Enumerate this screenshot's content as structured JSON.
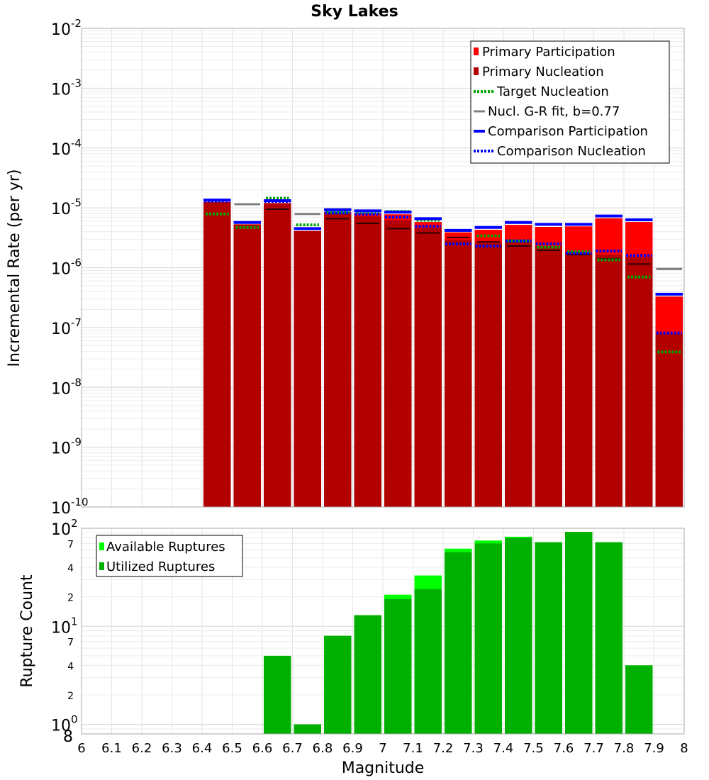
{
  "chart_data": [
    {
      "type": "bar",
      "title": "Sky Lakes",
      "ylabel": "Incremental Rate (per yr)",
      "yscale": "log",
      "ylim": [
        1e-10,
        0.01
      ],
      "xlim": [
        6.0,
        8.0
      ],
      "bin_width": 0.1,
      "grid": true,
      "legend_position": "top-right",
      "legend": [
        "Primary Participation",
        "Primary Nucleation",
        "Target Nucleation",
        "Nucl. G-R fit, b=0.77",
        "Comparison Participation",
        "Comparison Nucleation"
      ],
      "x": [
        6.45,
        6.55,
        6.65,
        6.75,
        6.85,
        6.95,
        7.05,
        7.15,
        7.25,
        7.35,
        7.45,
        7.55,
        7.65,
        7.75,
        7.85,
        7.95
      ],
      "series": [
        {
          "name": "Primary Participation",
          "color": "#ff0000",
          "style": "bar",
          "values": [
            1.25e-05,
            5.3e-06,
            1.2e-05,
            4.1e-06,
            8.5e-06,
            8.2e-06,
            7.8e-06,
            5.8e-06,
            3.9e-06,
            4.3e-06,
            5.2e-06,
            4.8e-06,
            4.9e-06,
            6.7e-06,
            5.8e-06,
            3.3e-07
          ]
        },
        {
          "name": "Primary Nucleation",
          "color": "#b20000",
          "style": "bar",
          "values": [
            1.25e-05,
            5.3e-06,
            1.2e-05,
            4.1e-06,
            8e-06,
            7.2e-06,
            6.2e-06,
            4.6e-06,
            2.9e-06,
            2.6e-06,
            2.7e-06,
            2.3e-06,
            1.75e-06,
            1.65e-06,
            1.5e-06,
            7.8e-08
          ]
        },
        {
          "name": "Target Nucleation",
          "color": "#00aa00",
          "style": "dotted",
          "values": [
            7.9e-06,
            4.7e-06,
            1.45e-05,
            5.2e-06,
            8.5e-06,
            8.4e-06,
            8.7e-06,
            6.2e-06,
            4.2e-06,
            3.4e-06,
            2.8e-06,
            2.2e-06,
            1.85e-06,
            1.35e-06,
            7e-07,
            3.9e-08
          ]
        },
        {
          "name": "Nucl. G-R fit, b=0.77",
          "color": "#808080",
          "style": "line",
          "values": [
            null,
            1.15e-05,
            null,
            7.9e-06,
            null,
            null,
            null,
            null,
            null,
            null,
            null,
            null,
            null,
            null,
            null,
            9.5e-07
          ]
        },
        {
          "name": "Comparison Participation",
          "color": "#0000ff",
          "style": "line",
          "values": [
            1.35e-05,
            5.7e-06,
            1.32e-05,
            4.5e-06,
            9.3e-06,
            8.9e-06,
            8.5e-06,
            6.6e-06,
            4.2e-06,
            4.7e-06,
            5.7e-06,
            5.3e-06,
            5.3e-06,
            7.3e-06,
            6.3e-06,
            3.6e-07
          ]
        },
        {
          "name": "Comparison Nucleation",
          "color": "#0000ff",
          "style": "dotted",
          "values": [
            1.3e-05,
            null,
            1.28e-05,
            null,
            8.2e-06,
            7.8e-06,
            7e-06,
            4.9e-06,
            2.5e-06,
            2.3e-06,
            2.8e-06,
            2.5e-06,
            1.75e-06,
            1.9e-06,
            1.6e-06,
            8.1e-08
          ]
        }
      ],
      "nucleation_markers": {
        "color": "#2a0000",
        "values": [
          null,
          null,
          9.5e-06,
          null,
          6.6e-06,
          5.5e-06,
          4.5e-06,
          3.8e-06,
          3.2e-06,
          2.7e-06,
          2.3e-06,
          1.95e-06,
          1.65e-06,
          1.4e-06,
          1.15e-06,
          null
        ]
      }
    },
    {
      "type": "bar",
      "ylabel": "Rupture Count",
      "xlabel": "Magnitude",
      "yscale": "log",
      "ylim": [
        0.8,
        100
      ],
      "xlim": [
        6.0,
        8.0
      ],
      "bin_width": 0.1,
      "grid": true,
      "legend_position": "top-left",
      "legend": [
        "Available Ruptures",
        "Utilized Ruptures"
      ],
      "x": [
        6.65,
        6.75,
        6.85,
        6.95,
        7.05,
        7.15,
        7.25,
        7.35,
        7.45,
        7.55,
        7.65,
        7.75,
        7.85
      ],
      "series": [
        {
          "name": "Available Ruptures",
          "color": "#00ff00",
          "values": [
            5,
            1,
            8,
            13,
            21,
            33,
            62,
            75,
            82,
            72,
            92,
            72,
            4
          ]
        },
        {
          "name": "Utilized Ruptures",
          "color": "#00b000",
          "values": [
            5,
            1,
            8,
            13,
            19,
            24,
            57,
            70,
            80,
            72,
            92,
            72,
            4
          ]
        }
      ]
    }
  ],
  "x_ticks": [
    "6",
    "6.1",
    "6.2",
    "6.3",
    "6.4",
    "6.5",
    "6.6",
    "6.7",
    "6.8",
    "6.9",
    "7",
    "7.1",
    "7.2",
    "7.3",
    "7.4",
    "7.5",
    "7.6",
    "7.7",
    "7.8",
    "7.9",
    "8"
  ],
  "top_y_ticks": [
    {
      "base": "10",
      "exp": "-2",
      "v": 0.01
    },
    {
      "base": "10",
      "exp": "-3",
      "v": 0.001
    },
    {
      "base": "10",
      "exp": "-4",
      "v": 0.0001
    },
    {
      "base": "10",
      "exp": "-5",
      "v": 1e-05
    },
    {
      "base": "10",
      "exp": "-6",
      "v": 1e-06
    },
    {
      "base": "10",
      "exp": "-7",
      "v": 1e-07
    },
    {
      "base": "10",
      "exp": "-8",
      "v": 1e-08
    },
    {
      "base": "10",
      "exp": "-9",
      "v": 1e-09
    },
    {
      "base": "10",
      "exp": "-10",
      "v": 1e-10
    }
  ],
  "bottom_y_major": [
    {
      "base": "10",
      "exp": "2",
      "v": 100
    },
    {
      "base": "10",
      "exp": "1",
      "v": 10
    },
    {
      "base": "10",
      "exp": "0",
      "v": 1
    }
  ],
  "bottom_y_minor": [
    {
      "label": "7",
      "v": 70
    },
    {
      "label": "4",
      "v": 40
    },
    {
      "label": "2",
      "v": 20
    },
    {
      "label": "7",
      "v": 7
    },
    {
      "label": "4",
      "v": 4
    },
    {
      "label": "2",
      "v": 2
    },
    {
      "label": "8",
      "v": 0.8
    }
  ]
}
